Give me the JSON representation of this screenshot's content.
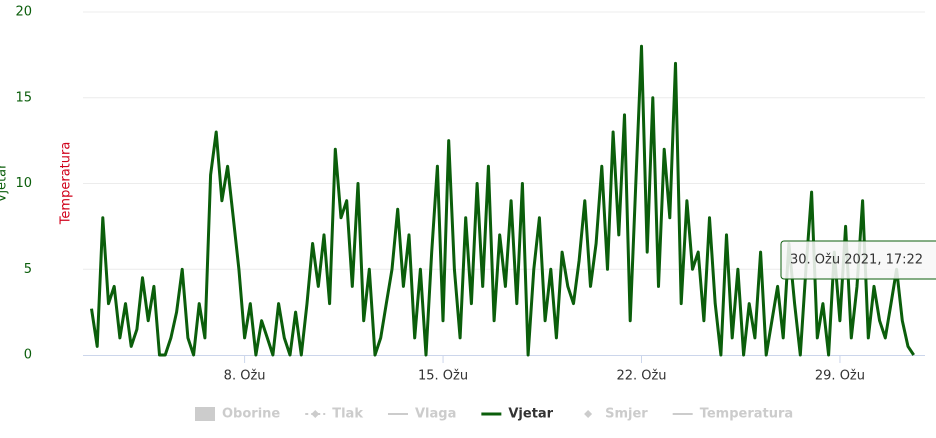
{
  "chart_data": {
    "type": "line",
    "y_title": "Vjetar",
    "y_title_color": "#0b5e0b",
    "y2_title": "Temperatura",
    "y2_title_color": "#d0021b",
    "ylim": [
      0,
      20
    ],
    "yticks": [
      0,
      5,
      10,
      15,
      20
    ],
    "ytick_color": "#0b5e0b",
    "xlim": [
      2.3,
      32.0
    ],
    "xticks": [
      {
        "value": 8,
        "label": "8. Ožu"
      },
      {
        "value": 15,
        "label": "15. Ožu"
      },
      {
        "value": 22,
        "label": "22. Ožu"
      },
      {
        "value": 29,
        "label": "29. Ožu"
      }
    ],
    "grid": true,
    "x": [
      2.6,
      2.8,
      3.0,
      3.2,
      3.4,
      3.6,
      3.8,
      4.0,
      4.2,
      4.4,
      4.6,
      4.8,
      5.0,
      5.2,
      5.4,
      5.6,
      5.8,
      6.0,
      6.2,
      6.4,
      6.6,
      6.8,
      7.0,
      7.2,
      7.4,
      7.6,
      7.8,
      8.0,
      8.2,
      8.4,
      8.6,
      8.8,
      9.0,
      9.2,
      9.4,
      9.6,
      9.8,
      10.0,
      10.2,
      10.4,
      10.6,
      10.8,
      11.0,
      11.2,
      11.4,
      11.6,
      11.8,
      12.0,
      12.2,
      12.4,
      12.6,
      12.8,
      13.0,
      13.2,
      13.4,
      13.6,
      13.8,
      14.0,
      14.2,
      14.4,
      14.6,
      14.8,
      15.0,
      15.2,
      15.4,
      15.6,
      15.8,
      16.0,
      16.2,
      16.4,
      16.6,
      16.8,
      17.0,
      17.2,
      17.4,
      17.6,
      17.8,
      18.0,
      18.2,
      18.4,
      18.6,
      18.8,
      19.0,
      19.2,
      19.4,
      19.6,
      19.8,
      20.0,
      20.2,
      20.4,
      20.6,
      20.8,
      21.0,
      21.2,
      21.4,
      21.6,
      21.8,
      22.0,
      22.2,
      22.4,
      22.6,
      22.8,
      23.0,
      23.2,
      23.4,
      23.6,
      23.8,
      24.0,
      24.2,
      24.4,
      24.6,
      24.8,
      25.0,
      25.2,
      25.4,
      25.6,
      25.8,
      26.0,
      26.2,
      26.4,
      26.6,
      26.8,
      27.0,
      27.2,
      27.4,
      27.6,
      27.8,
      28.0,
      28.2,
      28.4,
      28.6,
      28.8,
      29.0,
      29.2,
      29.4,
      29.6,
      29.8,
      30.0,
      30.2,
      30.4,
      30.6,
      30.8,
      31.0,
      31.2,
      31.4,
      31.6
    ],
    "series": [
      {
        "name": "Oborine",
        "color": "#cccccc",
        "symbol": "rect",
        "visible": false
      },
      {
        "name": "Tlak",
        "color": "#cccccc",
        "symbol": "dashdiamond",
        "visible": false
      },
      {
        "name": "Vlaga",
        "color": "#cccccc",
        "symbol": "line",
        "visible": false
      },
      {
        "name": "Vjetar",
        "color": "#0b5e0b",
        "symbol": "line",
        "visible": true,
        "values": [
          2.7,
          0.5,
          8,
          3,
          4,
          1,
          3,
          0.5,
          1.5,
          4.5,
          2,
          4,
          0,
          0,
          1,
          2.5,
          5,
          1,
          0,
          3,
          1,
          10.5,
          13,
          9,
          11,
          8,
          5,
          1,
          3,
          0,
          2,
          1,
          0,
          3,
          1,
          0,
          2.5,
          0,
          3,
          6.5,
          4,
          7,
          3,
          12,
          8,
          9,
          4,
          10,
          2,
          5,
          0,
          1,
          3,
          5,
          8.5,
          4,
          7,
          1,
          5,
          0,
          6,
          11,
          2,
          12.5,
          5,
          1,
          8,
          3,
          10,
          4,
          11,
          2,
          7,
          4,
          9,
          3,
          10,
          0,
          5,
          8,
          2,
          5,
          1,
          6,
          4,
          3,
          5.5,
          9,
          4,
          6.5,
          11,
          5,
          13,
          7,
          14,
          2,
          10,
          18,
          6,
          15,
          4,
          12,
          8,
          17,
          3,
          9,
          5,
          6,
          2,
          8,
          3,
          0,
          7,
          1,
          5,
          0,
          3,
          1,
          6,
          0,
          2,
          4,
          1,
          6.5,
          3,
          0,
          5,
          9.5,
          1,
          3,
          0,
          6,
          2,
          7.5,
          1,
          4,
          9,
          1,
          4,
          2,
          1,
          3,
          5,
          2,
          0.5,
          0
        ]
      },
      {
        "name": "Smjer",
        "color": "#cccccc",
        "symbol": "diamond",
        "visible": false
      },
      {
        "name": "Temperatura",
        "color": "#cccccc",
        "symbol": "line",
        "visible": false
      }
    ],
    "tooltip": "30. Ožu 2021, 17:22"
  }
}
